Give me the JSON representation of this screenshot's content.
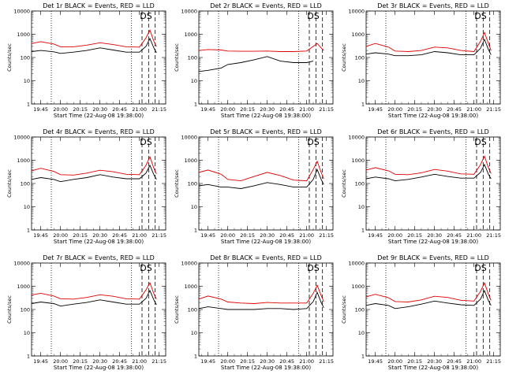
{
  "chart_data": [
    {
      "type": "line",
      "title": "Det 1r BLACK = Events, RED = LLD",
      "xlabel": "Start Time (22-Aug-08 19:38:00)",
      "ylabel": "Counts/sec",
      "ylim": [
        1,
        10000
      ],
      "yscale": "log",
      "yticks": [
        "1",
        "10",
        "100",
        "1000",
        "10000"
      ],
      "xticks": [
        "19:45",
        "20:00",
        "20:15",
        "20:30",
        "20:45",
        "21:00",
        "21:15"
      ],
      "annotations": [
        "DS"
      ],
      "grid": false,
      "legend": "none",
      "x": [
        "19:38",
        "19:45",
        "19:55",
        "20:00",
        "20:10",
        "20:20",
        "20:30",
        "20:40",
        "20:50",
        "21:00",
        "21:05",
        "21:08",
        "21:11",
        "21:13"
      ],
      "series": [
        {
          "name": "RED",
          "color": "#e00000",
          "values": [
            400,
            480,
            380,
            290,
            290,
            340,
            430,
            360,
            290,
            280,
            700,
            1500,
            500,
            300
          ]
        },
        {
          "name": "BLACK",
          "color": "#000000",
          "values": [
            180,
            200,
            175,
            150,
            170,
            200,
            260,
            210,
            170,
            170,
            300,
            650,
            260,
            160
          ]
        }
      ]
    },
    {
      "type": "line",
      "title": "Det 2r BLACK = Events, RED = LLD",
      "xlabel": "Start Time (22-Aug-08 19:38:00)",
      "ylabel": "Counts/sec",
      "ylim": [
        1,
        10000
      ],
      "yscale": "log",
      "yticks": [
        "1",
        "10",
        "100",
        "1000",
        "10000"
      ],
      "xticks": [
        "19:45",
        "20:00",
        "20:15",
        "20:30",
        "20:45",
        "21:00",
        "21:15"
      ],
      "annotations": [
        "DS"
      ],
      "grid": false,
      "legend": "none",
      "x": [
        "19:38",
        "19:45",
        "19:55",
        "20:00",
        "20:10",
        "20:20",
        "20:30",
        "20:40",
        "20:50",
        "21:00",
        "21:05",
        "21:08",
        "21:11",
        "21:13"
      ],
      "series": [
        {
          "name": "RED",
          "color": "#e00000",
          "values": [
            200,
            220,
            210,
            190,
            185,
            185,
            190,
            180,
            180,
            190,
            300,
            400,
            260,
            200
          ]
        },
        {
          "name": "BLACK",
          "color": "#000000",
          "values": [
            25,
            28,
            35,
            50,
            60,
            80,
            110,
            70,
            60,
            60,
            70,
            null,
            null,
            null
          ]
        }
      ]
    },
    {
      "type": "line",
      "title": "Det 3r BLACK = Events, RED = LLD",
      "xlabel": "Start Time (22-Aug-08 19:38:00)",
      "ylabel": "Counts/sec",
      "ylim": [
        1,
        10000
      ],
      "yscale": "log",
      "yticks": [
        "1",
        "10",
        "100",
        "1000",
        "10000"
      ],
      "xticks": [
        "19:45",
        "20:00",
        "20:15",
        "20:30",
        "20:45",
        "21:00",
        "21:15"
      ],
      "annotations": [
        "DS"
      ],
      "grid": false,
      "legend": "none",
      "x": [
        "19:38",
        "19:45",
        "19:55",
        "20:00",
        "20:10",
        "20:20",
        "20:30",
        "20:40",
        "20:50",
        "21:00",
        "21:05",
        "21:08",
        "21:11",
        "21:13"
      ],
      "series": [
        {
          "name": "RED",
          "color": "#e00000",
          "values": [
            300,
            400,
            280,
            190,
            180,
            200,
            280,
            260,
            200,
            180,
            500,
            1200,
            400,
            200
          ]
        },
        {
          "name": "BLACK",
          "color": "#000000",
          "values": [
            140,
            160,
            140,
            120,
            120,
            130,
            180,
            160,
            130,
            130,
            250,
            600,
            220,
            130
          ]
        }
      ]
    },
    {
      "type": "line",
      "title": "Det 4r BLACK = Events, RED = LLD",
      "xlabel": "Start Time (22-Aug-08 19:38:00)",
      "ylabel": "Counts/sec",
      "ylim": [
        1,
        10000
      ],
      "yscale": "log",
      "yticks": [
        "1",
        "10",
        "100",
        "1000",
        "10000"
      ],
      "xticks": [
        "19:45",
        "20:00",
        "20:15",
        "20:30",
        "20:45",
        "21:00",
        "21:15"
      ],
      "annotations": [
        "DS"
      ],
      "grid": false,
      "legend": "none",
      "x": [
        "19:38",
        "19:45",
        "19:55",
        "20:00",
        "20:10",
        "20:20",
        "20:30",
        "20:40",
        "20:50",
        "21:00",
        "21:05",
        "21:08",
        "21:11",
        "21:13"
      ],
      "series": [
        {
          "name": "RED",
          "color": "#e00000",
          "values": [
            350,
            450,
            330,
            240,
            230,
            280,
            370,
            320,
            250,
            240,
            600,
            1400,
            450,
            260
          ]
        },
        {
          "name": "BLACK",
          "color": "#000000",
          "values": [
            150,
            180,
            150,
            120,
            150,
            180,
            240,
            190,
            160,
            160,
            280,
            600,
            240,
            150
          ]
        }
      ]
    },
    {
      "type": "line",
      "title": "Det 5r BLACK = Events, RED = LLD",
      "xlabel": "Start Time (22-Aug-08 19:38:00)",
      "ylabel": "Counts/sec",
      "ylim": [
        1,
        10000
      ],
      "yscale": "log",
      "yticks": [
        "1",
        "10",
        "100",
        "1000",
        "10000"
      ],
      "xticks": [
        "19:45",
        "20:00",
        "20:15",
        "20:30",
        "20:45",
        "21:00",
        "21:15"
      ],
      "annotations": [
        "DS"
      ],
      "grid": false,
      "legend": "none",
      "x": [
        "19:38",
        "19:45",
        "19:55",
        "20:00",
        "20:10",
        "20:20",
        "20:30",
        "20:40",
        "20:50",
        "21:00",
        "21:05",
        "21:08",
        "21:11",
        "21:13"
      ],
      "series": [
        {
          "name": "RED",
          "color": "#e00000",
          "values": [
            300,
            380,
            250,
            150,
            130,
            200,
            300,
            220,
            140,
            130,
            400,
            900,
            300,
            160
          ]
        },
        {
          "name": "BLACK",
          "color": "#000000",
          "values": [
            80,
            90,
            70,
            70,
            60,
            80,
            110,
            90,
            70,
            70,
            150,
            400,
            150,
            90
          ]
        }
      ]
    },
    {
      "type": "line",
      "title": "Det 6r BLACK = Events, RED = LLD",
      "xlabel": "Start Time (22-Aug-08 19:38:00)",
      "ylabel": "Counts/sec",
      "ylim": [
        1,
        10000
      ],
      "yscale": "log",
      "yticks": [
        "1",
        "10",
        "100",
        "1000",
        "10000"
      ],
      "xticks": [
        "19:45",
        "20:00",
        "20:15",
        "20:30",
        "20:45",
        "21:00",
        "21:15"
      ],
      "annotations": [
        "DS"
      ],
      "grid": false,
      "legend": "none",
      "x": [
        "19:38",
        "19:45",
        "19:55",
        "20:00",
        "20:10",
        "20:20",
        "20:30",
        "20:40",
        "20:50",
        "21:00",
        "21:05",
        "21:08",
        "21:11",
        "21:13"
      ],
      "series": [
        {
          "name": "RED",
          "color": "#e00000",
          "values": [
            380,
            480,
            350,
            250,
            240,
            290,
            400,
            340,
            260,
            250,
            650,
            1500,
            480,
            270
          ]
        },
        {
          "name": "BLACK",
          "color": "#000000",
          "values": [
            160,
            190,
            160,
            130,
            150,
            190,
            250,
            200,
            170,
            170,
            300,
            650,
            250,
            160
          ]
        }
      ]
    },
    {
      "type": "line",
      "title": "Det 7r BLACK = Events, RED = LLD",
      "xlabel": "Start Time (22-Aug-08 19:38:00)",
      "ylabel": "Counts/sec",
      "ylim": [
        1,
        10000
      ],
      "yscale": "log",
      "yticks": [
        "1",
        "10",
        "100",
        "1000",
        "10000"
      ],
      "xticks": [
        "19:45",
        "20:00",
        "20:15",
        "20:30",
        "20:45",
        "21:00",
        "21:15"
      ],
      "annotations": [
        "DS"
      ],
      "grid": false,
      "legend": "none",
      "x": [
        "19:38",
        "19:45",
        "19:55",
        "20:00",
        "20:10",
        "20:20",
        "20:30",
        "20:40",
        "20:50",
        "21:00",
        "21:05",
        "21:08",
        "21:11",
        "21:13"
      ],
      "series": [
        {
          "name": "RED",
          "color": "#e00000",
          "values": [
            420,
            500,
            380,
            290,
            280,
            330,
            430,
            370,
            290,
            280,
            700,
            1400,
            480,
            280
          ]
        },
        {
          "name": "BLACK",
          "color": "#000000",
          "values": [
            180,
            210,
            180,
            140,
            170,
            200,
            260,
            210,
            170,
            170,
            300,
            650,
            260,
            160
          ]
        }
      ]
    },
    {
      "type": "line",
      "title": "Det 8r BLACK = Events, RED = LLD",
      "xlabel": "Start Time (22-Aug-08 19:38:00)",
      "ylabel": "Counts/sec",
      "ylim": [
        1,
        10000
      ],
      "yscale": "log",
      "yticks": [
        "1",
        "10",
        "100",
        "1000",
        "10000"
      ],
      "xticks": [
        "19:45",
        "20:00",
        "20:15",
        "20:30",
        "20:45",
        "21:00",
        "21:15"
      ],
      "annotations": [
        "DS"
      ],
      "grid": false,
      "legend": "none",
      "x": [
        "19:38",
        "19:45",
        "19:55",
        "20:00",
        "20:10",
        "20:20",
        "20:30",
        "20:40",
        "20:50",
        "21:00",
        "21:05",
        "21:08",
        "21:11",
        "21:13"
      ],
      "series": [
        {
          "name": "RED",
          "color": "#e00000",
          "values": [
            280,
            380,
            280,
            210,
            190,
            180,
            200,
            190,
            190,
            190,
            500,
            1100,
            400,
            220
          ]
        },
        {
          "name": "BLACK",
          "color": "#000000",
          "values": [
            110,
            130,
            110,
            100,
            100,
            100,
            110,
            110,
            100,
            110,
            220,
            550,
            200,
            120
          ]
        }
      ]
    },
    {
      "type": "line",
      "title": "Det 9r BLACK = Events, RED = LLD",
      "xlabel": "Start Time (22-Aug-08 19:38:00)",
      "ylabel": "Counts/sec",
      "ylim": [
        1,
        10000
      ],
      "yscale": "log",
      "yticks": [
        "1",
        "10",
        "100",
        "1000",
        "10000"
      ],
      "xticks": [
        "19:45",
        "20:00",
        "20:15",
        "20:30",
        "20:45",
        "21:00",
        "21:15"
      ],
      "annotations": [
        "DS"
      ],
      "grid": false,
      "legend": "none",
      "x": [
        "19:38",
        "19:45",
        "19:55",
        "20:00",
        "20:10",
        "20:20",
        "20:30",
        "20:40",
        "20:50",
        "21:00",
        "21:05",
        "21:08",
        "21:11",
        "21:13"
      ],
      "series": [
        {
          "name": "RED",
          "color": "#e00000",
          "values": [
            350,
            450,
            320,
            220,
            210,
            260,
            370,
            330,
            250,
            230,
            600,
            1400,
            450,
            250
          ]
        },
        {
          "name": "BLACK",
          "color": "#000000",
          "values": [
            150,
            180,
            150,
            110,
            130,
            170,
            230,
            190,
            160,
            150,
            280,
            650,
            240,
            150
          ]
        }
      ]
    }
  ]
}
